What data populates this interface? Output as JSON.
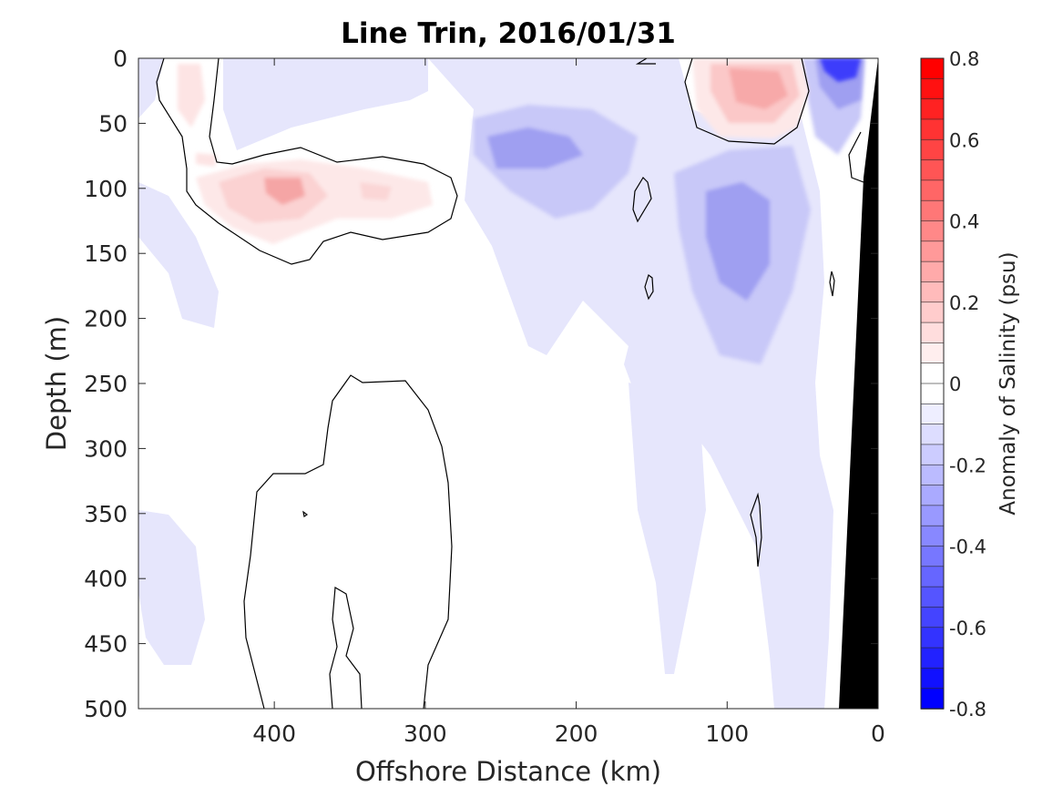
{
  "chart_data": {
    "type": "contour",
    "title": "Line Trin, 2016/01/31",
    "xlabel": "Offshore Distance (km)",
    "ylabel": "Depth (m)",
    "xlim": [
      490,
      0
    ],
    "ylim": [
      0,
      500
    ],
    "x_reversed": true,
    "y_reversed": true,
    "x_ticks": [
      400,
      300,
      200,
      100,
      0
    ],
    "y_ticks": [
      0,
      50,
      100,
      150,
      200,
      250,
      300,
      350,
      400,
      450,
      500
    ],
    "colorbar": {
      "label": "Anomaly of Salinity (psu)",
      "range": [
        -0.8,
        0.8
      ],
      "levels": 32,
      "ticks": [
        "0.8",
        "0.6",
        "0.4",
        "0.2",
        "0",
        "-0.2",
        "-0.4",
        "-0.6",
        "-0.8"
      ],
      "tick_values": [
        0.8,
        0.6,
        0.4,
        0.2,
        0,
        -0.2,
        -0.4,
        -0.6,
        -0.8
      ],
      "negative_color": "#0000ff",
      "positive_color": "#ff0000",
      "zero_color": "#ffffff"
    },
    "zero_contour_color": "#000000",
    "bathymetry_color": "#000000",
    "features": [
      {
        "kind": "positive",
        "x": 80,
        "y": 25,
        "value": 0.2
      },
      {
        "kind": "positive",
        "x": 390,
        "y": 100,
        "value": 0.2
      },
      {
        "kind": "positive",
        "x": 330,
        "y": 100,
        "value": 0.1
      },
      {
        "kind": "positive",
        "x": 450,
        "y": 30,
        "value": 0.05
      },
      {
        "kind": "negative",
        "x": 20,
        "y": 5,
        "value": -0.6
      },
      {
        "kind": "negative",
        "x": 85,
        "y": 120,
        "value": -0.25
      },
      {
        "kind": "negative",
        "x": 230,
        "y": 70,
        "value": -0.2
      },
      {
        "kind": "negative",
        "x": 40,
        "y": 110,
        "value": -0.15
      },
      {
        "kind": "negative",
        "x": 460,
        "y": 180,
        "value": -0.05
      },
      {
        "kind": "negative",
        "x": 120,
        "y": 380,
        "value": -0.05
      }
    ]
  }
}
